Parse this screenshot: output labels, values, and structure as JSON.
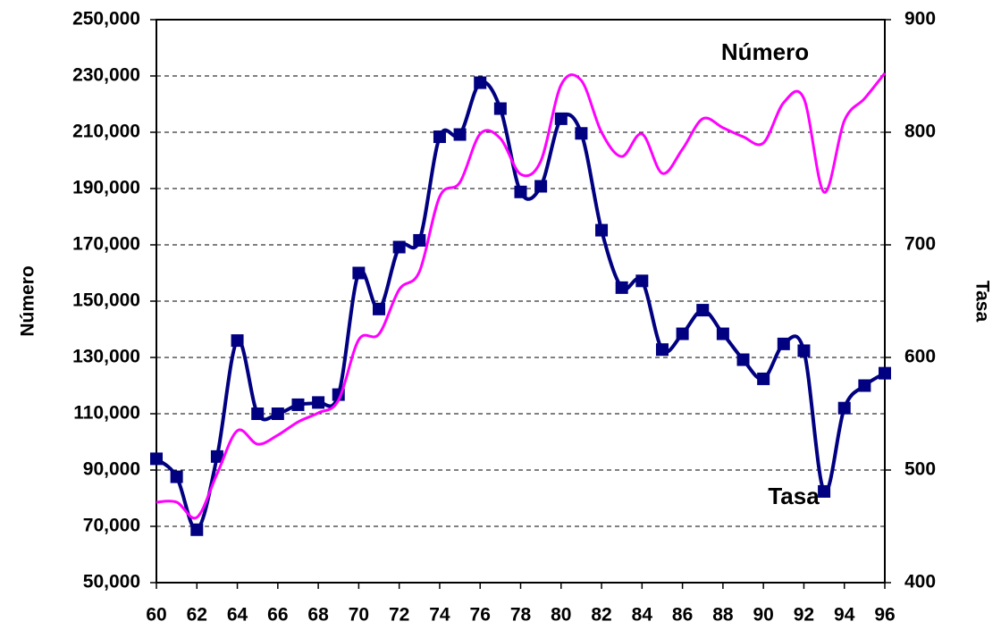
{
  "chart_data": {
    "type": "line",
    "x": [
      60,
      61,
      62,
      63,
      64,
      65,
      66,
      67,
      68,
      69,
      70,
      71,
      72,
      73,
      74,
      75,
      76,
      77,
      78,
      79,
      80,
      81,
      82,
      83,
      84,
      85,
      86,
      87,
      88,
      89,
      90,
      91,
      92,
      93,
      94,
      95,
      96
    ],
    "xlim": [
      60,
      96
    ],
    "xticks": [
      60,
      62,
      64,
      66,
      68,
      70,
      72,
      74,
      76,
      78,
      80,
      82,
      84,
      86,
      88,
      90,
      92,
      94,
      96
    ],
    "ylabel": "Número",
    "y2label": "Tasa",
    "ylim": [
      50000,
      250000
    ],
    "yticks": [
      {
        "value": 50000,
        "label": "50,000"
      },
      {
        "value": 70000,
        "label": "70,000"
      },
      {
        "value": 90000,
        "label": "90,000"
      },
      {
        "value": 110000,
        "label": "110,000"
      },
      {
        "value": 130000,
        "label": "130,000"
      },
      {
        "value": 150000,
        "label": "150,000"
      },
      {
        "value": 170000,
        "label": "170,000"
      },
      {
        "value": 190000,
        "label": "190,000"
      },
      {
        "value": 210000,
        "label": "210,000"
      },
      {
        "value": 230000,
        "label": "230,000"
      },
      {
        "value": 250000,
        "label": "250,000"
      }
    ],
    "y2lim": [
      400,
      900
    ],
    "y2ticks": [
      400,
      500,
      600,
      700,
      800,
      900
    ],
    "grid": true,
    "series": [
      {
        "name": "Tasa",
        "color": "#000080",
        "axis": "y2",
        "marker": "square",
        "smooth": true,
        "values": [
          510,
          494,
          447,
          512,
          615,
          550,
          550,
          558,
          560,
          567,
          675,
          643,
          698,
          704,
          796,
          798,
          844,
          821,
          747,
          752,
          812,
          799,
          713,
          662,
          668,
          607,
          621,
          642,
          621,
          598,
          581,
          612,
          606,
          481,
          555,
          575,
          586
        ]
      },
      {
        "name": "Número",
        "color": "#ff00ff",
        "smooth": true,
        "values": [
          78600,
          78600,
          73200,
          88700,
          104000,
          99200,
          102400,
          107100,
          110300,
          114800,
          136300,
          138300,
          154100,
          160500,
          187100,
          192200,
          209400,
          207800,
          195100,
          199800,
          226800,
          228400,
          210000,
          201400,
          209400,
          195400,
          204000,
          214800,
          211600,
          208400,
          206200,
          220500,
          222000,
          188700,
          214100,
          222000,
          231000
        ]
      }
    ]
  }
}
